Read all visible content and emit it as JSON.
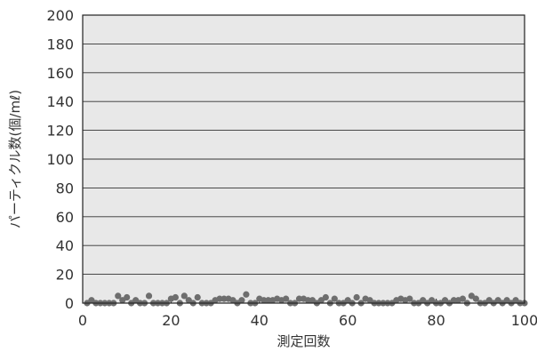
{
  "chart_data": {
    "type": "scatter",
    "title": "",
    "xlabel": "測定回数",
    "ylabel": "パーティクル数(個/mℓ)",
    "xlim": [
      0,
      100
    ],
    "ylim": [
      0,
      200
    ],
    "x_ticks": [
      0,
      20,
      40,
      60,
      80,
      100
    ],
    "y_ticks": [
      0,
      20,
      40,
      60,
      80,
      100,
      120,
      140,
      160,
      180,
      200
    ],
    "grid": "horizontal",
    "legend": "none",
    "colors": {
      "plot_background": "#e8e8e8",
      "gridline": "#333333",
      "marker": "#6e6e6e",
      "axis": "#222222"
    },
    "series": [
      {
        "x": [
          1,
          2,
          3,
          4,
          5,
          6,
          7,
          8,
          9,
          10,
          11,
          12,
          13,
          14,
          15,
          16,
          17,
          18,
          19,
          20,
          21,
          22,
          23,
          24,
          25,
          26,
          27,
          28,
          29,
          30,
          31,
          32,
          33,
          34,
          35,
          36,
          37,
          38,
          39,
          40,
          41,
          42,
          43,
          44,
          45,
          46,
          47,
          48,
          49,
          50,
          51,
          52,
          53,
          54,
          55,
          56,
          57,
          58,
          59,
          60,
          61,
          62,
          63,
          64,
          65,
          66,
          67,
          68,
          69,
          70,
          71,
          72,
          73,
          74,
          75,
          76,
          77,
          78,
          79,
          80,
          81,
          82,
          83,
          84,
          85,
          86,
          87,
          88,
          89,
          90,
          91,
          92,
          93,
          94,
          95,
          96,
          97,
          98,
          99,
          100
        ],
        "y": [
          0,
          2,
          0,
          0,
          0,
          0,
          0,
          5,
          2,
          4,
          0,
          2,
          0,
          0,
          5,
          0,
          0,
          0,
          0,
          3,
          4,
          0,
          5,
          2,
          0,
          4,
          0,
          0,
          0,
          2,
          3,
          3,
          3,
          2,
          0,
          2,
          6,
          0,
          0,
          3,
          2,
          2,
          2,
          3,
          2,
          3,
          0,
          0,
          3,
          3,
          2,
          2,
          0,
          2,
          4,
          0,
          3,
          0,
          0,
          2,
          0,
          4,
          0,
          3,
          2,
          0,
          0,
          0,
          0,
          0,
          2,
          3,
          2,
          3,
          0,
          0,
          2,
          0,
          2,
          0,
          0,
          2,
          0,
          2,
          2,
          3,
          0,
          5,
          3,
          0,
          0,
          2,
          0,
          2,
          0,
          2,
          0,
          2,
          0,
          0
        ]
      }
    ]
  }
}
